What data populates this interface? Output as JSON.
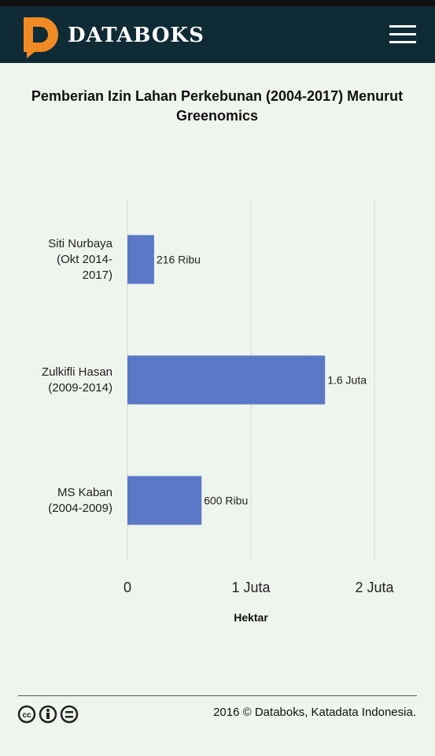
{
  "header": {
    "brand": "DATABOKS"
  },
  "chart_data": {
    "type": "bar",
    "orientation": "horizontal",
    "title": "Pemberian Izin Lahan Perkebunan (2004-2017) Menurut Greenomics",
    "categories": [
      "Siti Nurbaya (Okt 2014-2017)",
      "Zulkifli Hasan (2009-2014)",
      "MS Kaban (2004-2009)"
    ],
    "values": [
      216000,
      1600000,
      600000
    ],
    "value_labels": [
      "216 Ribu",
      "1.6 Juta",
      "600 Ribu"
    ],
    "color": "#5b78c7",
    "x_label": "Hektar",
    "xlim": [
      0,
      2000000
    ],
    "xticks": [
      0,
      {
        "value": 1000000,
        "label": "1 Juta"
      },
      {
        "value": 2000000,
        "label": "2 Juta"
      }
    ],
    "grid": true
  },
  "footer": {
    "text": "2016 © Databoks, Katadata Indonesia."
  }
}
